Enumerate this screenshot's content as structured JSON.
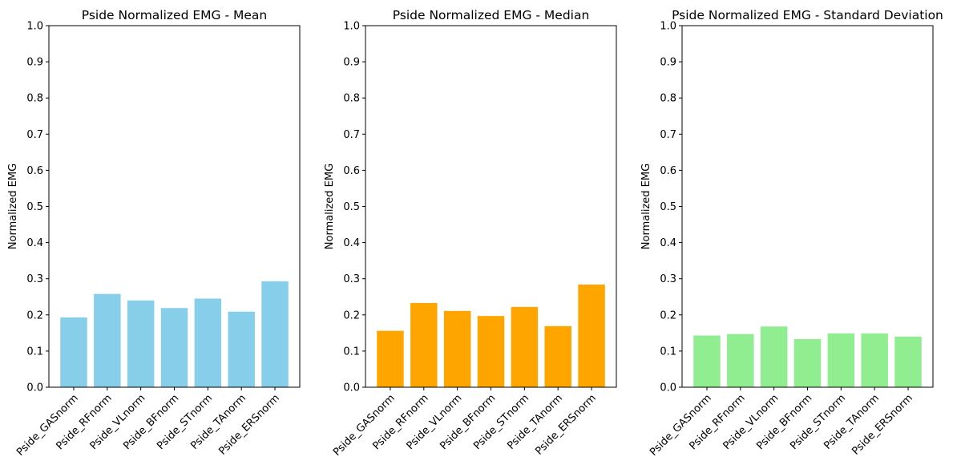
{
  "chart_data": [
    {
      "type": "bar",
      "title": "Pside Normalized EMG - Mean",
      "xlabel": "",
      "ylabel": "Normalized EMG",
      "ylim": [
        0,
        1
      ],
      "yticks": [
        "0.0",
        "0.1",
        "0.2",
        "0.3",
        "0.4",
        "0.5",
        "0.6",
        "0.7",
        "0.8",
        "0.9",
        "1.0"
      ],
      "categories": [
        "Pside_GASnorm",
        "Pside_RFnorm",
        "Pside_VLnorm",
        "Pside_BFnorm",
        "Pside_STnorm",
        "Pside_TAnorm",
        "Pside_ERSnorm"
      ],
      "values": [
        0.193,
        0.258,
        0.24,
        0.219,
        0.245,
        0.209,
        0.293
      ],
      "color": "#87CEEB",
      "grid": false,
      "legend": "none"
    },
    {
      "type": "bar",
      "title": "Pside Normalized EMG - Median",
      "xlabel": "",
      "ylabel": "Normalized EMG",
      "ylim": [
        0,
        1
      ],
      "yticks": [
        "0.0",
        "0.1",
        "0.2",
        "0.3",
        "0.4",
        "0.5",
        "0.6",
        "0.7",
        "0.8",
        "0.9",
        "1.0"
      ],
      "categories": [
        "Pside_GASnorm",
        "Pside_RFnorm",
        "Pside_VLnorm",
        "Pside_BFnorm",
        "Pside_STnorm",
        "Pside_TAnorm",
        "Pside_ERSnorm"
      ],
      "values": [
        0.156,
        0.233,
        0.211,
        0.197,
        0.222,
        0.169,
        0.284
      ],
      "color": "#FFA500",
      "grid": false,
      "legend": "none"
    },
    {
      "type": "bar",
      "title": "Pside Normalized EMG - Standard Deviation",
      "xlabel": "",
      "ylabel": "Normalized EMG",
      "ylim": [
        0,
        1
      ],
      "yticks": [
        "0.0",
        "0.1",
        "0.2",
        "0.3",
        "0.4",
        "0.5",
        "0.6",
        "0.7",
        "0.8",
        "0.9",
        "1.0"
      ],
      "categories": [
        "Pside_GASnorm",
        "Pside_RFnorm",
        "Pside_VLnorm",
        "Pside_BFnorm",
        "Pside_STnorm",
        "Pside_TAnorm",
        "Pside_ERSnorm"
      ],
      "values": [
        0.143,
        0.147,
        0.168,
        0.133,
        0.149,
        0.149,
        0.14
      ],
      "color": "#90EE90",
      "grid": false,
      "legend": "none"
    }
  ]
}
